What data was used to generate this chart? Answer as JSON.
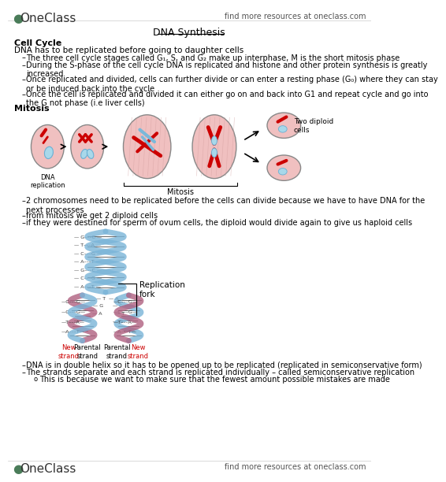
{
  "bg_color": "#ffffff",
  "header_logo_text": "OneClass",
  "header_right_text": "find more resources at oneclass.com",
  "footer_logo_text": "OneClass",
  "footer_right_text": "find more resources at oneclass.com",
  "title": "DNA Synthesis",
  "section1_header": "Cell Cycle",
  "section1_subheader": "DNA has to be replicated before going to daughter cells",
  "bullet1": "The three cell cycle stages called G₁, S, and G₂ make up interphase, M is the short mitosis phase",
  "bullet2": "During the S-phase of the cell cycle DNA is replicated and histone and other protein synthesis is greatly\nincreased",
  "bullet3": "Once replicated and divided, cells can further divide or can enter a resting phase (G₀) where they can stay\nor be induced back into the cycle",
  "bullet4": "Once the cell is replicated and divided it can either go on and back into G1 and repeat cycle and go into\nthe G not phase (i.e liver cells)",
  "section2_header": "Mitosis",
  "mitosis_label1": "DNA\nreplication",
  "mitosis_label2": "Mitosis",
  "mitosis_label3": "Two diploid\ncells",
  "bullet5": "2 chromosomes need to be replicated before the cells can divide because we have to have DNA for the\nnext processes",
  "bullet6": "from mitosis we get 2 diploid cells",
  "bullet7": "if they were destined for sperm of ovum cells, the diploid would divide again to give us haploid cells",
  "dna_label1": "Replication\nfork",
  "dna_label2_new1": "New\nstrand",
  "dna_label2_parental1": "Parental\nstrand",
  "dna_label2_parental2": "Parental\nstrand",
  "dna_label2_new2": "New\nstrand",
  "bullet8": "DNA is in double helix so it has to be opened up to be replicated (replicated in semiconservative form)",
  "bullet9": "The strands separate and each strand is replicated individually – called semiconservative replication",
  "sub_bullet1": "This is because we want to make sure that the fewest amount possible mistakes are made",
  "text_color": "#000000",
  "title_color": "#000000",
  "logo_color": "#4a7c59",
  "red_color": "#cc0000",
  "blue_color": "#5b9bd5",
  "pink_cell_color": "#f0c0c0",
  "light_pink": "#f5d5d8"
}
